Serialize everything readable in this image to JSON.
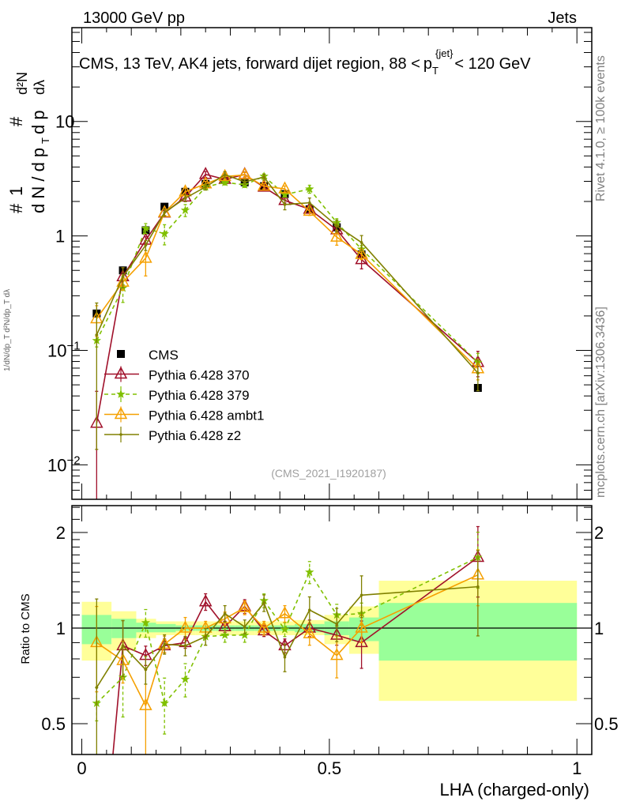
{
  "header": {
    "left": "13000 GeV pp",
    "right": "Jets"
  },
  "side_text": {
    "rivet": "Rivet 4.1.0, ≥ 100k events",
    "mcplots": "mcplots.cern.ch [arXiv:1306.3436]"
  },
  "analysis_id": "(CMS_2021_I1920187)",
  "chart_data": [
    {
      "type": "line",
      "panel": "main",
      "title": "CMS, 13 TeV, AK4 jets, forward dijet region, 88 < p_T^{jet} < 120 GeV",
      "title_parts": {
        "main": "CMS, 13 TeV, AK4 jets, forward dijet region, 88 <",
        "p": "p",
        "sub": "T",
        "sup": "{jet}",
        "tail": "< 120 GeV"
      },
      "ylabel": "1/dN/dp_T d²N/dp_T dλ",
      "ylabel_parts": {
        "hash": "#",
        "one": "1",
        "den": "d N / d p",
        "sub": "T",
        "num": "d²N",
        "den2": "d p",
        "lam": "dλ"
      },
      "yscale": "log",
      "ylim": [
        0.005,
        66
      ],
      "xlim": [
        -0.02,
        1.03
      ],
      "ytick_labels": [
        {
          "v": 0.01,
          "base": "10",
          "exp": "−2"
        },
        {
          "v": 0.1,
          "base": "10",
          "exp": "−1"
        },
        {
          "v": 1,
          "base": "1",
          "exp": ""
        },
        {
          "v": 10,
          "base": "10",
          "exp": ""
        }
      ],
      "legend_placement": "lower-left",
      "x": [
        0.03,
        0.083,
        0.129,
        0.167,
        0.209,
        0.25,
        0.289,
        0.329,
        0.368,
        0.41,
        0.46,
        0.515,
        0.565,
        0.8
      ],
      "data": {
        "name": "CMS",
        "values": [
          0.21,
          0.5,
          1.12,
          1.8,
          2.43,
          2.85,
          3.09,
          2.94,
          2.72,
          2.32,
          1.71,
          1.19,
          0.69,
          0.047
        ]
      },
      "series": [
        {
          "name": "Pythia 6.428 370",
          "color": "#a0102a",
          "marker": "open-triangle",
          "dash": false,
          "ratio": [
            0.11,
            0.88,
            0.82,
            0.88,
            0.9,
            1.21,
            1.01,
            1.17,
            0.98,
            0.88,
            1.0,
            0.95,
            0.9,
            1.67
          ],
          "rel_err": [
            0.9,
            0.2,
            0.07,
            0.05,
            0.04,
            0.06,
            0.04,
            0.05,
            0.04,
            0.05,
            0.06,
            0.07,
            0.17,
            0.25
          ]
        },
        {
          "name": "Pythia 6.428 379",
          "color": "#80c000",
          "marker": "star",
          "dash": true,
          "ratio": [
            0.58,
            0.7,
            1.04,
            0.58,
            0.69,
            0.94,
            0.95,
            0.95,
            1.22,
            0.99,
            1.5,
            1.1,
            1.11,
            1.67
          ],
          "rel_err": [
            0.12,
            0.25,
            0.1,
            0.2,
            0.12,
            0.06,
            0.05,
            0.05,
            0.05,
            0.05,
            0.08,
            0.08,
            0.08,
            0.2
          ]
        },
        {
          "name": "Pythia 6.428 ambt1",
          "color": "#f5a000",
          "marker": "open-triangle",
          "dash": false,
          "ratio": [
            0.9,
            0.79,
            0.57,
            0.89,
            1.0,
            1.0,
            1.07,
            1.16,
            1.0,
            1.11,
            0.96,
            0.82,
            1.0,
            1.47
          ],
          "rel_err": [
            0.3,
            0.15,
            0.3,
            0.06,
            0.08,
            0.05,
            0.05,
            0.05,
            0.05,
            0.06,
            0.08,
            0.15,
            0.1,
            0.2
          ]
        },
        {
          "name": "Pythia 6.428 z2",
          "color": "#808000",
          "marker": "dot",
          "dash": false,
          "ratio": [
            0.65,
            0.88,
            0.74,
            0.89,
            0.88,
            0.94,
            1.11,
            1.01,
            1.2,
            0.81,
            1.14,
            1.03,
            1.27,
            1.35
          ],
          "rel_err": [
            0.9,
            0.2,
            0.1,
            0.07,
            0.07,
            0.06,
            0.06,
            0.05,
            0.06,
            0.1,
            0.1,
            0.12,
            0.15,
            0.3
          ]
        }
      ]
    },
    {
      "type": "line",
      "panel": "ratio",
      "ylabel": "Ratio to CMS",
      "xlabel": "LHA (charged-only)",
      "yscale": "log2",
      "ylim": [
        0.4,
        2.43
      ],
      "ytick_labels": [
        {
          "v": 0.5,
          "t": "0.5"
        },
        {
          "v": 1,
          "t": "1"
        },
        {
          "v": 2,
          "t": "2"
        }
      ],
      "xtick_labels": [
        {
          "v": 0,
          "t": "0"
        },
        {
          "v": 0.5,
          "t": "0.5"
        },
        {
          "v": 1,
          "t": "1"
        }
      ],
      "band_edges": [
        0,
        0.06,
        0.11,
        0.15,
        0.19,
        0.23,
        0.27,
        0.31,
        0.35,
        0.39,
        0.43,
        0.49,
        0.54,
        0.6,
        1.0
      ],
      "band_total": [
        [
          0.79,
          1.21
        ],
        [
          0.85,
          1.13
        ],
        [
          0.93,
          1.07
        ],
        [
          0.95,
          1.05
        ],
        [
          0.95,
          1.05
        ],
        [
          0.95,
          1.05
        ],
        [
          0.95,
          1.05
        ],
        [
          0.95,
          1.05
        ],
        [
          0.95,
          1.05
        ],
        [
          0.95,
          1.05
        ],
        [
          0.95,
          1.06
        ],
        [
          0.89,
          1.1
        ],
        [
          0.83,
          1.17
        ],
        [
          0.59,
          1.41
        ]
      ],
      "band_stat": [
        [
          0.89,
          1.1
        ],
        [
          0.93,
          1.07
        ],
        [
          0.97,
          1.04
        ],
        [
          0.97,
          1.03
        ],
        [
          0.98,
          1.02
        ],
        [
          0.98,
          1.02
        ],
        [
          0.98,
          1.02
        ],
        [
          0.98,
          1.02
        ],
        [
          0.98,
          1.02
        ],
        [
          0.98,
          1.02
        ],
        [
          0.97,
          1.03
        ],
        [
          0.95,
          1.05
        ],
        [
          0.91,
          1.08
        ],
        [
          0.79,
          1.2
        ]
      ],
      "band_colors": {
        "total": "#ffff99",
        "stat": "#99ff99"
      }
    }
  ]
}
